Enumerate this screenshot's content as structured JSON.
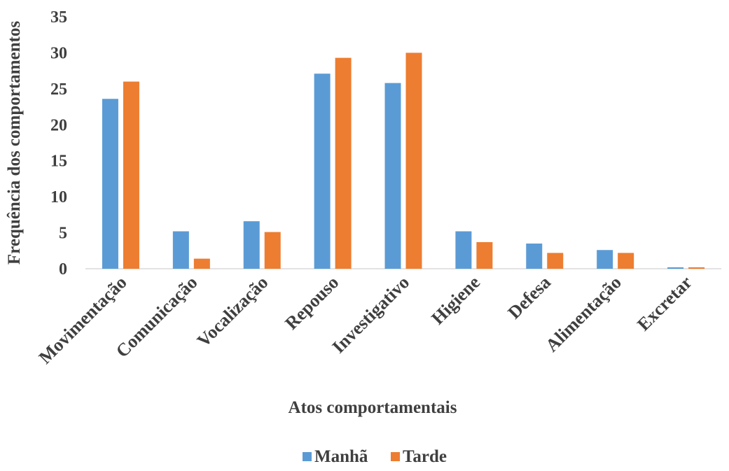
{
  "chart_data": {
    "type": "bar",
    "title": "",
    "xlabel": "Atos comportamentais",
    "ylabel": "Frequência dos comportamentos",
    "ylim": [
      0,
      35
    ],
    "yticks": [
      "0",
      "5",
      "10",
      "15",
      "20",
      "25",
      "30",
      "35"
    ],
    "grid": false,
    "legend_position": "bottom",
    "categories": [
      "Movimentação",
      "Comunicação",
      "Vocalização",
      "Repouso",
      "Investigativo",
      "Higiene",
      "Defesa",
      "Alimentação",
      "Excretar"
    ],
    "series": [
      {
        "name": "Manhã",
        "color": "#5b9bd5",
        "values": [
          23.6,
          5.2,
          6.6,
          27.1,
          25.8,
          5.2,
          3.5,
          2.6,
          0.2
        ]
      },
      {
        "name": "Tarde",
        "color": "#ed7d31",
        "values": [
          26.0,
          1.4,
          5.1,
          29.3,
          30.0,
          3.7,
          2.2,
          2.2,
          0.2
        ]
      }
    ]
  }
}
